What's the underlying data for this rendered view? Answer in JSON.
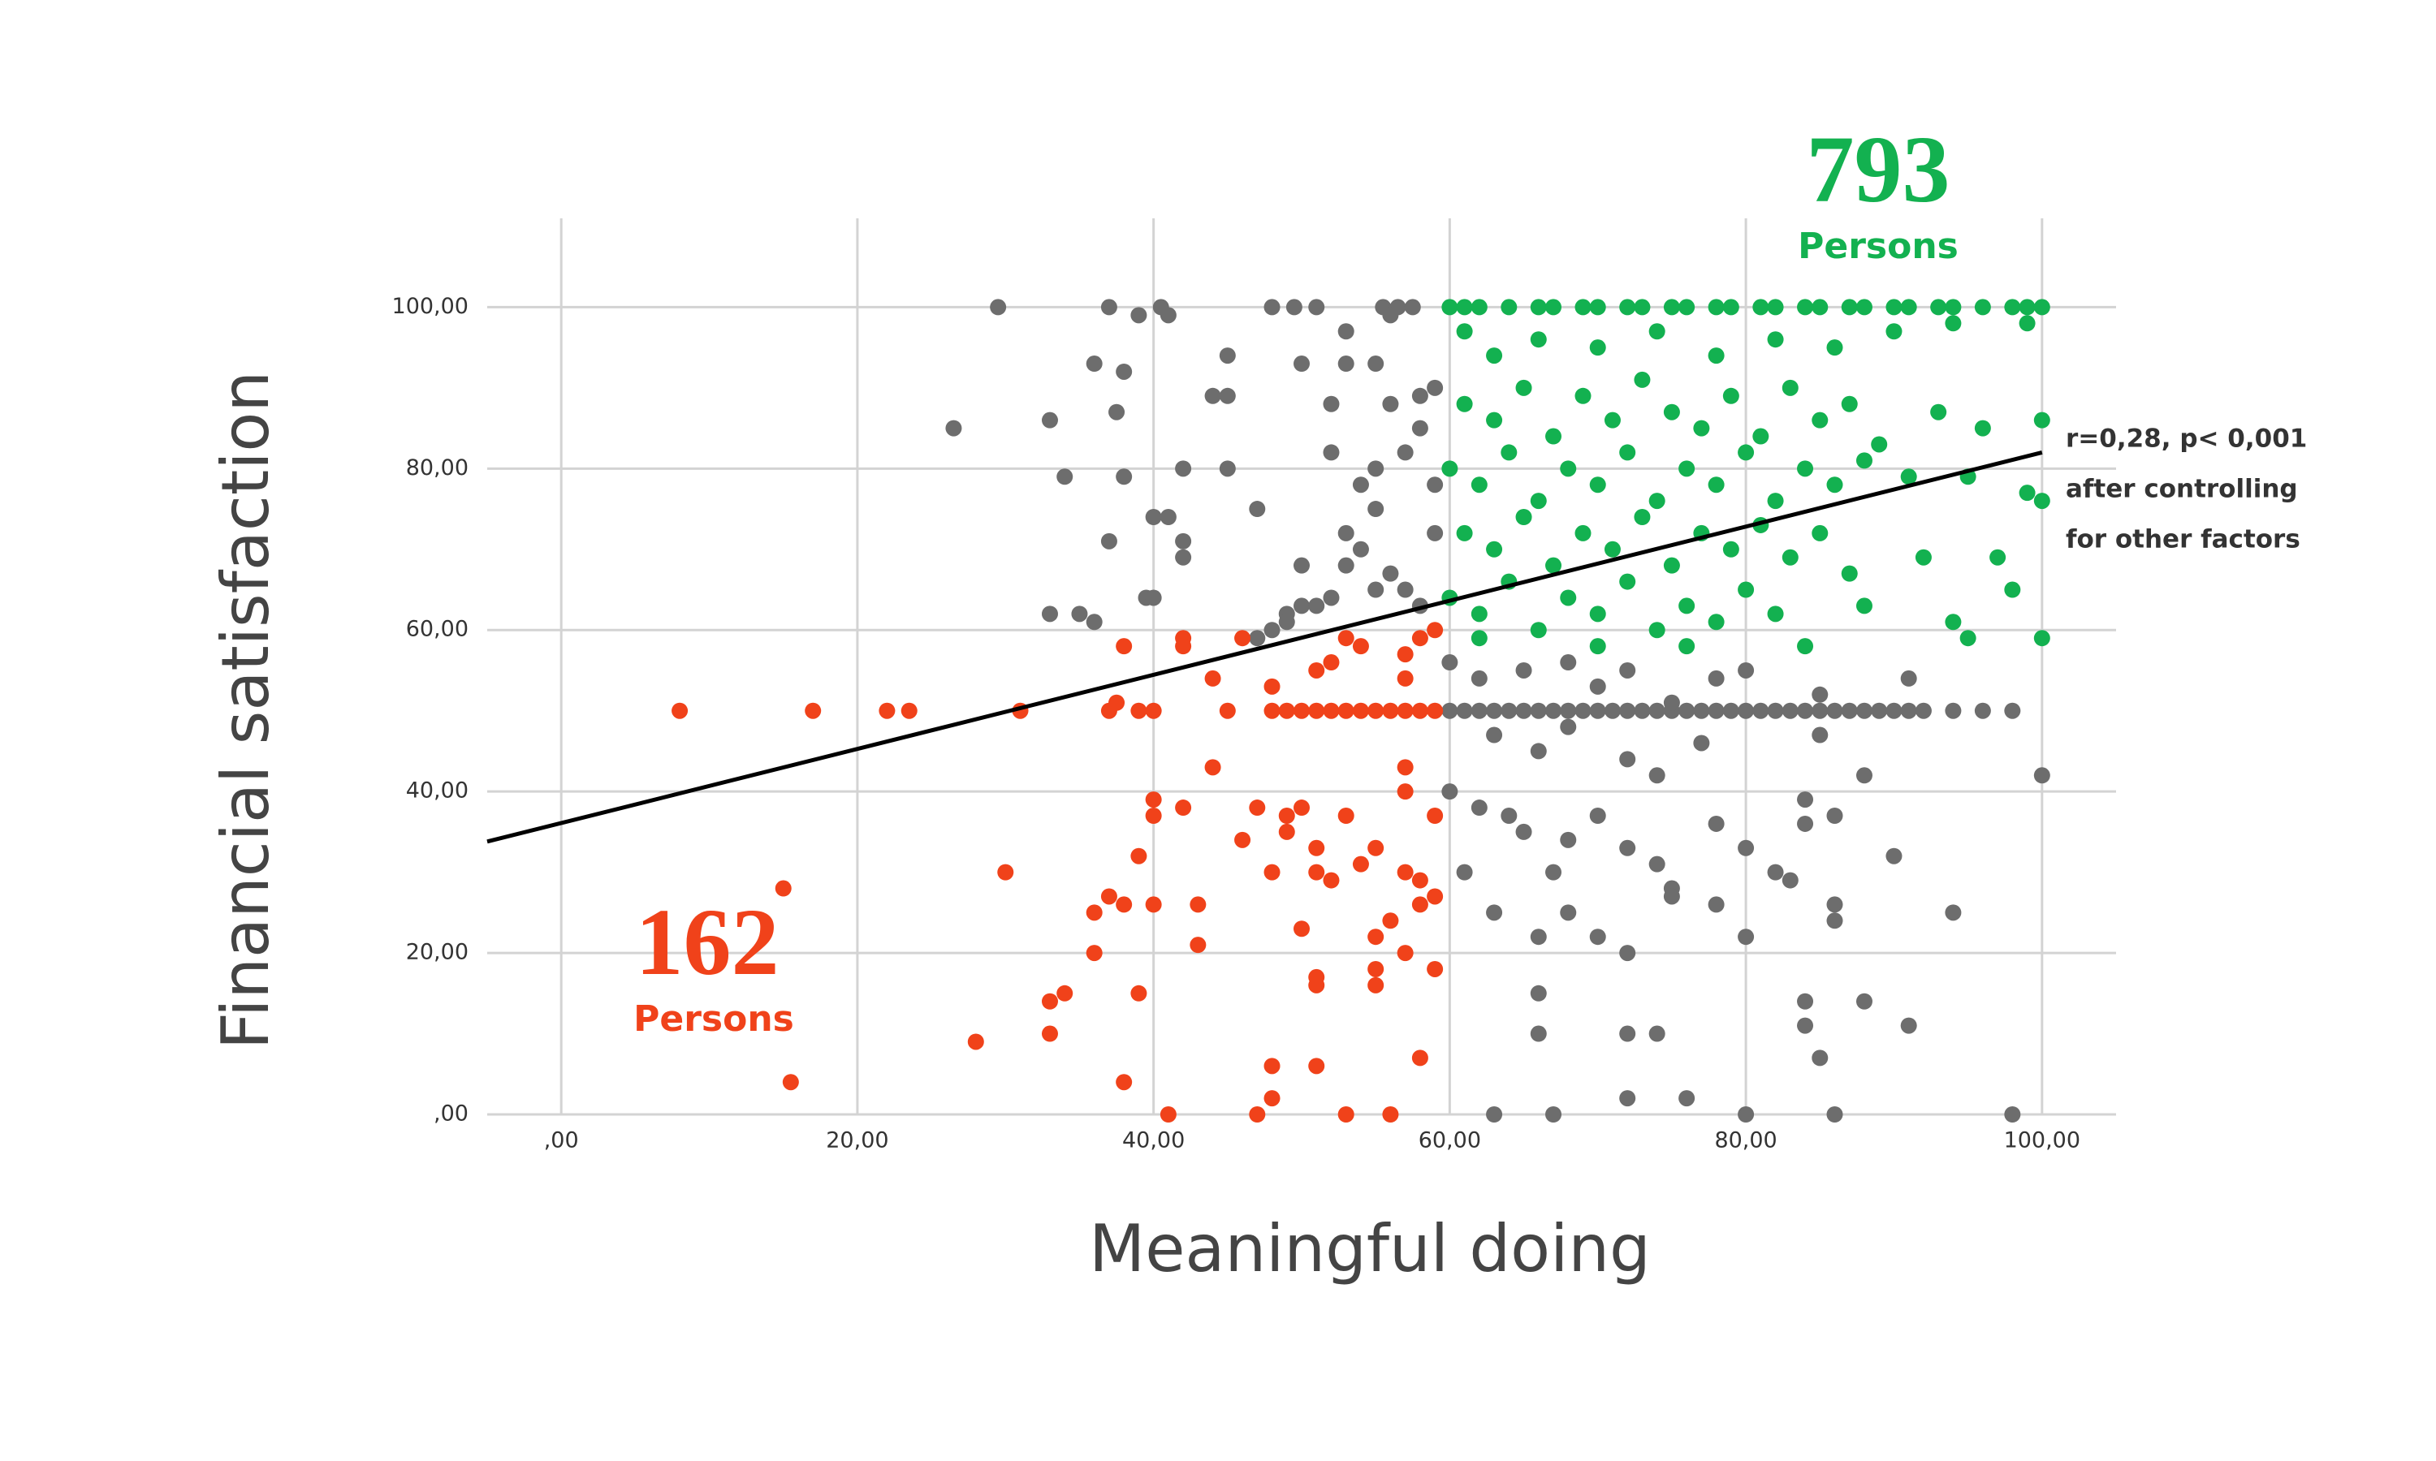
{
  "chart_data": {
    "type": "scatter",
    "x_label": "Meaningful doing",
    "y_label": "Financial satisfaction",
    "xlim": [
      -5,
      105
    ],
    "ylim": [
      0,
      111
    ],
    "xticks": [
      {
        "value": 0,
        "label": ",00"
      },
      {
        "value": 20,
        "label": "20,00"
      },
      {
        "value": 40,
        "label": "40,00"
      },
      {
        "value": 60,
        "label": "60,00"
      },
      {
        "value": 80,
        "label": "80,00"
      },
      {
        "value": 100,
        "label": "100,00"
      }
    ],
    "yticks": [
      {
        "value": 0,
        "label": ",00"
      },
      {
        "value": 20,
        "label": "20,00"
      },
      {
        "value": 40,
        "label": "40,00"
      },
      {
        "value": 60,
        "label": "60,00"
      },
      {
        "value": 80,
        "label": "80,00"
      },
      {
        "value": 100,
        "label": "100,00"
      }
    ],
    "grid": true,
    "green_count": "793",
    "green_label": "Persons",
    "red_count": "162",
    "red_label": "Persons",
    "stats": [
      "r=0,28, p< 0,001",
      "after controlling",
      "for other factors"
    ],
    "trend": {
      "color": "#000000",
      "x": [
        -5,
        100
      ],
      "values": [
        33.8,
        82
      ]
    },
    "series": [
      {
        "color": "#6d6d6d",
        "x": [
          29.5,
          37,
          39,
          40.5,
          41,
          48,
          49.5,
          51,
          55.5,
          56.5,
          57.5,
          26.5,
          33,
          37.5,
          36,
          38,
          45,
          45,
          44,
          42,
          45,
          34,
          38,
          47,
          40,
          41,
          42,
          42,
          37,
          39.5,
          40,
          33,
          35,
          36,
          49,
          50,
          51,
          52,
          50,
          53,
          54,
          55,
          52,
          57,
          58,
          58,
          59,
          55,
          53,
          50,
          53,
          56,
          52,
          56,
          55,
          54,
          56,
          57,
          58,
          59,
          59,
          55,
          53,
          48,
          47,
          49,
          60,
          61,
          62,
          63,
          64,
          65,
          66,
          67,
          68,
          69,
          70,
          71,
          72,
          73,
          74,
          75,
          76,
          77,
          78,
          79,
          80,
          81,
          82,
          83,
          84,
          85,
          86,
          87,
          88,
          89,
          90,
          91,
          92,
          94,
          96,
          98,
          60,
          62,
          65,
          68,
          70,
          72,
          75,
          78,
          80,
          85,
          91,
          63,
          66,
          68,
          72,
          74,
          77,
          85,
          88,
          100,
          60,
          62,
          64,
          65,
          67,
          68,
          70,
          72,
          74,
          75,
          78,
          80,
          82,
          84,
          86,
          90,
          61,
          63,
          66,
          68,
          70,
          72,
          75,
          78,
          80,
          83,
          86,
          94,
          66,
          66,
          72,
          74,
          72,
          76,
          84,
          84,
          88,
          91,
          85,
          63,
          67,
          80,
          86,
          98,
          84,
          86
        ],
        "values": [
          100,
          100,
          99,
          100,
          99,
          100,
          100,
          100,
          100,
          100,
          100,
          85,
          86,
          87,
          93,
          92,
          89,
          94,
          89,
          80,
          80,
          79,
          79,
          75,
          74,
          74,
          71,
          69,
          71,
          64,
          64,
          62,
          62,
          61,
          62,
          63,
          63,
          64,
          68,
          72,
          78,
          80,
          82,
          82,
          85,
          89,
          90,
          93,
          93,
          93,
          97,
          99,
          88,
          88,
          75,
          70,
          67,
          65,
          63,
          78,
          72,
          65,
          68,
          60,
          59,
          61,
          50,
          50,
          50,
          50,
          50,
          50,
          50,
          50,
          50,
          50,
          50,
          50,
          50,
          50,
          50,
          50,
          50,
          50,
          50,
          50,
          50,
          50,
          50,
          50,
          50,
          50,
          50,
          50,
          50,
          50,
          50,
          50,
          50,
          50,
          50,
          50,
          56,
          54,
          55,
          56,
          53,
          55,
          51,
          54,
          55,
          52,
          54,
          47,
          45,
          48,
          44,
          42,
          46,
          47,
          42,
          42,
          40,
          38,
          37,
          35,
          30,
          34,
          37,
          33,
          31,
          28,
          36,
          33,
          30,
          36,
          37,
          32,
          30,
          25,
          22,
          25,
          22,
          20,
          27,
          26,
          22,
          29,
          24,
          25,
          15,
          10,
          10,
          10,
          2,
          2,
          14,
          11,
          14,
          11,
          7,
          0,
          0,
          0,
          0,
          0,
          39,
          26
        ]
      },
      {
        "color": "#13b150",
        "x": [
          60,
          61,
          62,
          64,
          66,
          67,
          69,
          70,
          72,
          73,
          75,
          76,
          78,
          79,
          81,
          82,
          84,
          85,
          87,
          88,
          90,
          91,
          93,
          94,
          96,
          98,
          99,
          100,
          61,
          63,
          66,
          70,
          74,
          78,
          82,
          86,
          90,
          94,
          99,
          61,
          63,
          65,
          67,
          69,
          71,
          73,
          75,
          77,
          79,
          81,
          83,
          85,
          87,
          89,
          93,
          96,
          100,
          60,
          62,
          64,
          66,
          68,
          70,
          72,
          74,
          76,
          78,
          80,
          82,
          84,
          86,
          88,
          91,
          95,
          99,
          100,
          61,
          63,
          65,
          67,
          69,
          71,
          73,
          75,
          77,
          79,
          81,
          83,
          85,
          87,
          92,
          97,
          98,
          60,
          62,
          64,
          66,
          68,
          70,
          72,
          74,
          76,
          78,
          80,
          82,
          84,
          88,
          94,
          100,
          62,
          70,
          76,
          95
        ],
        "values": [
          100,
          100,
          100,
          100,
          100,
          100,
          100,
          100,
          100,
          100,
          100,
          100,
          100,
          100,
          100,
          100,
          100,
          100,
          100,
          100,
          100,
          100,
          100,
          100,
          100,
          100,
          100,
          100,
          97,
          94,
          96,
          95,
          97,
          94,
          96,
          95,
          97,
          98,
          98,
          88,
          86,
          90,
          84,
          89,
          86,
          91,
          87,
          85,
          89,
          84,
          90,
          86,
          88,
          83,
          87,
          85,
          86,
          80,
          78,
          82,
          76,
          80,
          78,
          82,
          76,
          80,
          78,
          82,
          76,
          80,
          78,
          81,
          79,
          79,
          77,
          76,
          72,
          70,
          74,
          68,
          72,
          70,
          74,
          68,
          72,
          70,
          73,
          69,
          72,
          67,
          69,
          69,
          65,
          64,
          62,
          66,
          60,
          64,
          62,
          66,
          60,
          63,
          61,
          65,
          62,
          58,
          63,
          61,
          59,
          59,
          58,
          58,
          59
        ]
      },
      {
        "color": "#f0421a",
        "x": [
          8,
          17,
          22,
          23.5,
          31,
          37,
          37.5,
          39,
          40,
          45,
          48,
          49,
          50,
          51,
          52,
          53,
          54,
          55,
          56,
          57,
          58,
          59,
          38,
          42,
          42,
          46,
          44,
          48,
          51,
          52,
          53,
          54,
          57,
          57,
          58,
          59,
          44,
          40,
          40,
          42,
          47,
          49,
          50,
          53,
          57,
          57,
          59,
          46,
          48,
          49,
          51,
          51,
          52,
          54,
          55,
          57,
          58,
          59,
          30,
          39,
          36,
          37,
          38,
          40,
          43,
          50,
          56,
          58,
          43,
          36,
          55,
          55,
          57,
          59,
          51,
          51,
          55,
          33,
          34,
          33,
          39,
          15,
          15.5,
          28,
          48,
          48,
          51,
          38,
          41,
          47,
          53,
          56,
          58
        ],
        "values": [
          50,
          50,
          50,
          50,
          50,
          50,
          51,
          50,
          50,
          50,
          50,
          50,
          50,
          50,
          50,
          50,
          50,
          50,
          50,
          50,
          50,
          50,
          58,
          59,
          58,
          59,
          54,
          53,
          55,
          56,
          59,
          58,
          57,
          54,
          59,
          60,
          43,
          39,
          37,
          38,
          38,
          37,
          38,
          37,
          43,
          40,
          37,
          34,
          30,
          35,
          33,
          30,
          29,
          31,
          33,
          30,
          29,
          27,
          30,
          32,
          25,
          27,
          26,
          26,
          26,
          23,
          24,
          26,
          21,
          20,
          22,
          18,
          20,
          18,
          17,
          16,
          16,
          14,
          15,
          10,
          15,
          28,
          4,
          9,
          6,
          2,
          6,
          4,
          0,
          0,
          0,
          0,
          7
        ]
      }
    ]
  }
}
